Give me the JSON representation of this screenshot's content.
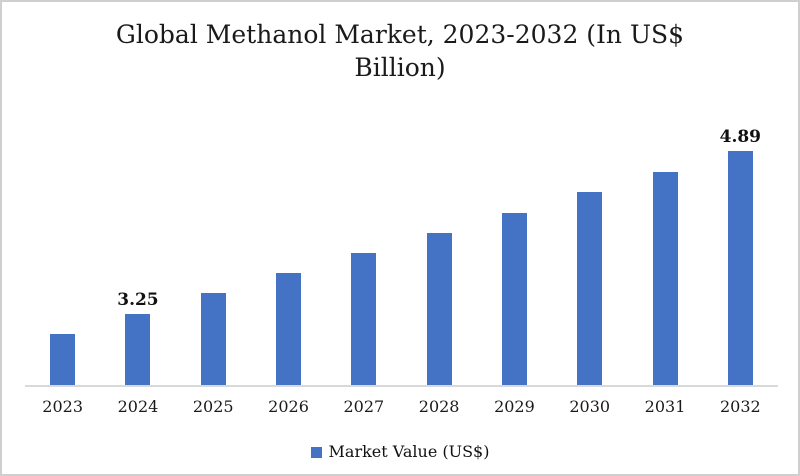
{
  "title": {
    "line1": "Global Methanol Market, 2023-2032 (In US$",
    "line2": "Billion)"
  },
  "legend": {
    "label": "Market Value (US$)"
  },
  "colors": {
    "bar": "#4472C4",
    "axis_line": "#D9D9D9",
    "title_text": "#1A1A1A",
    "frame_border": "#CFCFCF"
  },
  "chart_data": {
    "type": "bar",
    "title": "Global Methanol Market, 2023-2032 (In US$ Billion)",
    "categories": [
      "2023",
      "2024",
      "2025",
      "2026",
      "2027",
      "2028",
      "2029",
      "2030",
      "2031",
      "2032"
    ],
    "series": [
      {
        "name": "Market Value (US$)",
        "values": [
          3.05,
          3.25,
          3.46,
          3.66,
          3.86,
          4.07,
          4.27,
          4.48,
          4.68,
          4.89
        ]
      }
    ],
    "data_labels": {
      "2024": "3.25",
      "2032": "4.89"
    },
    "xlabel": "",
    "ylabel": "",
    "axis": {
      "y_min": 2.53,
      "y_max": 5.43,
      "y_axis_visible": false,
      "gridlines": false
    },
    "legend_position": "bottom"
  }
}
